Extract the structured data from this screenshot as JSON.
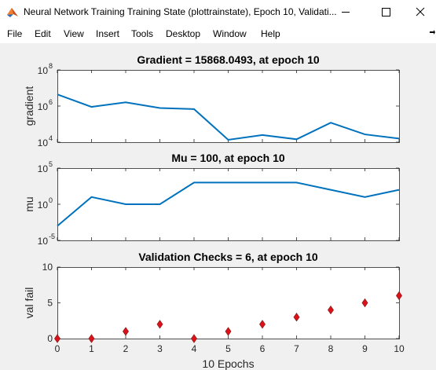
{
  "window": {
    "title": "Neural Network Training Training State (plottrainstate), Epoch 10, Validati...",
    "app_icon": "matlab-icon"
  },
  "menu": {
    "items": [
      "File",
      "Edit",
      "View",
      "Insert",
      "Tools",
      "Desktop",
      "Window",
      "Help"
    ]
  },
  "colors": {
    "line": "#0072bd",
    "marker_fill": "#e0101a",
    "marker_edge": "#8c2020"
  },
  "chart_data": [
    {
      "type": "line",
      "title": "Gradient = 15868.0493, at epoch 10",
      "ylabel": "gradient",
      "yscale": "log",
      "ylim": [
        10000,
        100000000
      ],
      "yticks": [
        {
          "value": 100000000,
          "base": "10",
          "exp": "8"
        },
        {
          "value": 1000000,
          "base": "10",
          "exp": "6"
        },
        {
          "value": 10000,
          "base": "10",
          "exp": "4"
        }
      ],
      "x": [
        0,
        1,
        2,
        3,
        4,
        5,
        6,
        7,
        8,
        9,
        10
      ],
      "values": [
        4400000,
        900000,
        1600000,
        780000,
        680000,
        13500,
        25000,
        14500,
        120000,
        27000,
        15868
      ]
    },
    {
      "type": "line",
      "title": "Mu = 100, at epoch 10",
      "ylabel": "mu",
      "yscale": "log",
      "ylim": [
        1e-05,
        100000
      ],
      "yticks": [
        {
          "value": 100000,
          "base": "10",
          "exp": "5"
        },
        {
          "value": 1,
          "base": "10",
          "exp": "0"
        },
        {
          "value": 1e-05,
          "base": "10",
          "exp": "-5"
        }
      ],
      "x": [
        0,
        1,
        2,
        3,
        4,
        5,
        6,
        7,
        8,
        9,
        10
      ],
      "values": [
        0.001,
        10,
        1,
        1,
        1000,
        1000,
        1000,
        1000,
        100,
        10,
        100
      ]
    },
    {
      "type": "scatter",
      "title": "Validation Checks = 6, at epoch 10",
      "ylabel": "val fail",
      "xlabel": "10 Epochs",
      "ylim": [
        0,
        10
      ],
      "yticks": [
        "0",
        "5",
        "10"
      ],
      "xticks": [
        "0",
        "1",
        "2",
        "3",
        "4",
        "5",
        "6",
        "7",
        "8",
        "9",
        "10"
      ],
      "x": [
        0,
        1,
        2,
        3,
        4,
        5,
        6,
        7,
        8,
        9,
        10
      ],
      "values": [
        0,
        0,
        1,
        2,
        0,
        1,
        2,
        3,
        4,
        5,
        6
      ]
    }
  ]
}
